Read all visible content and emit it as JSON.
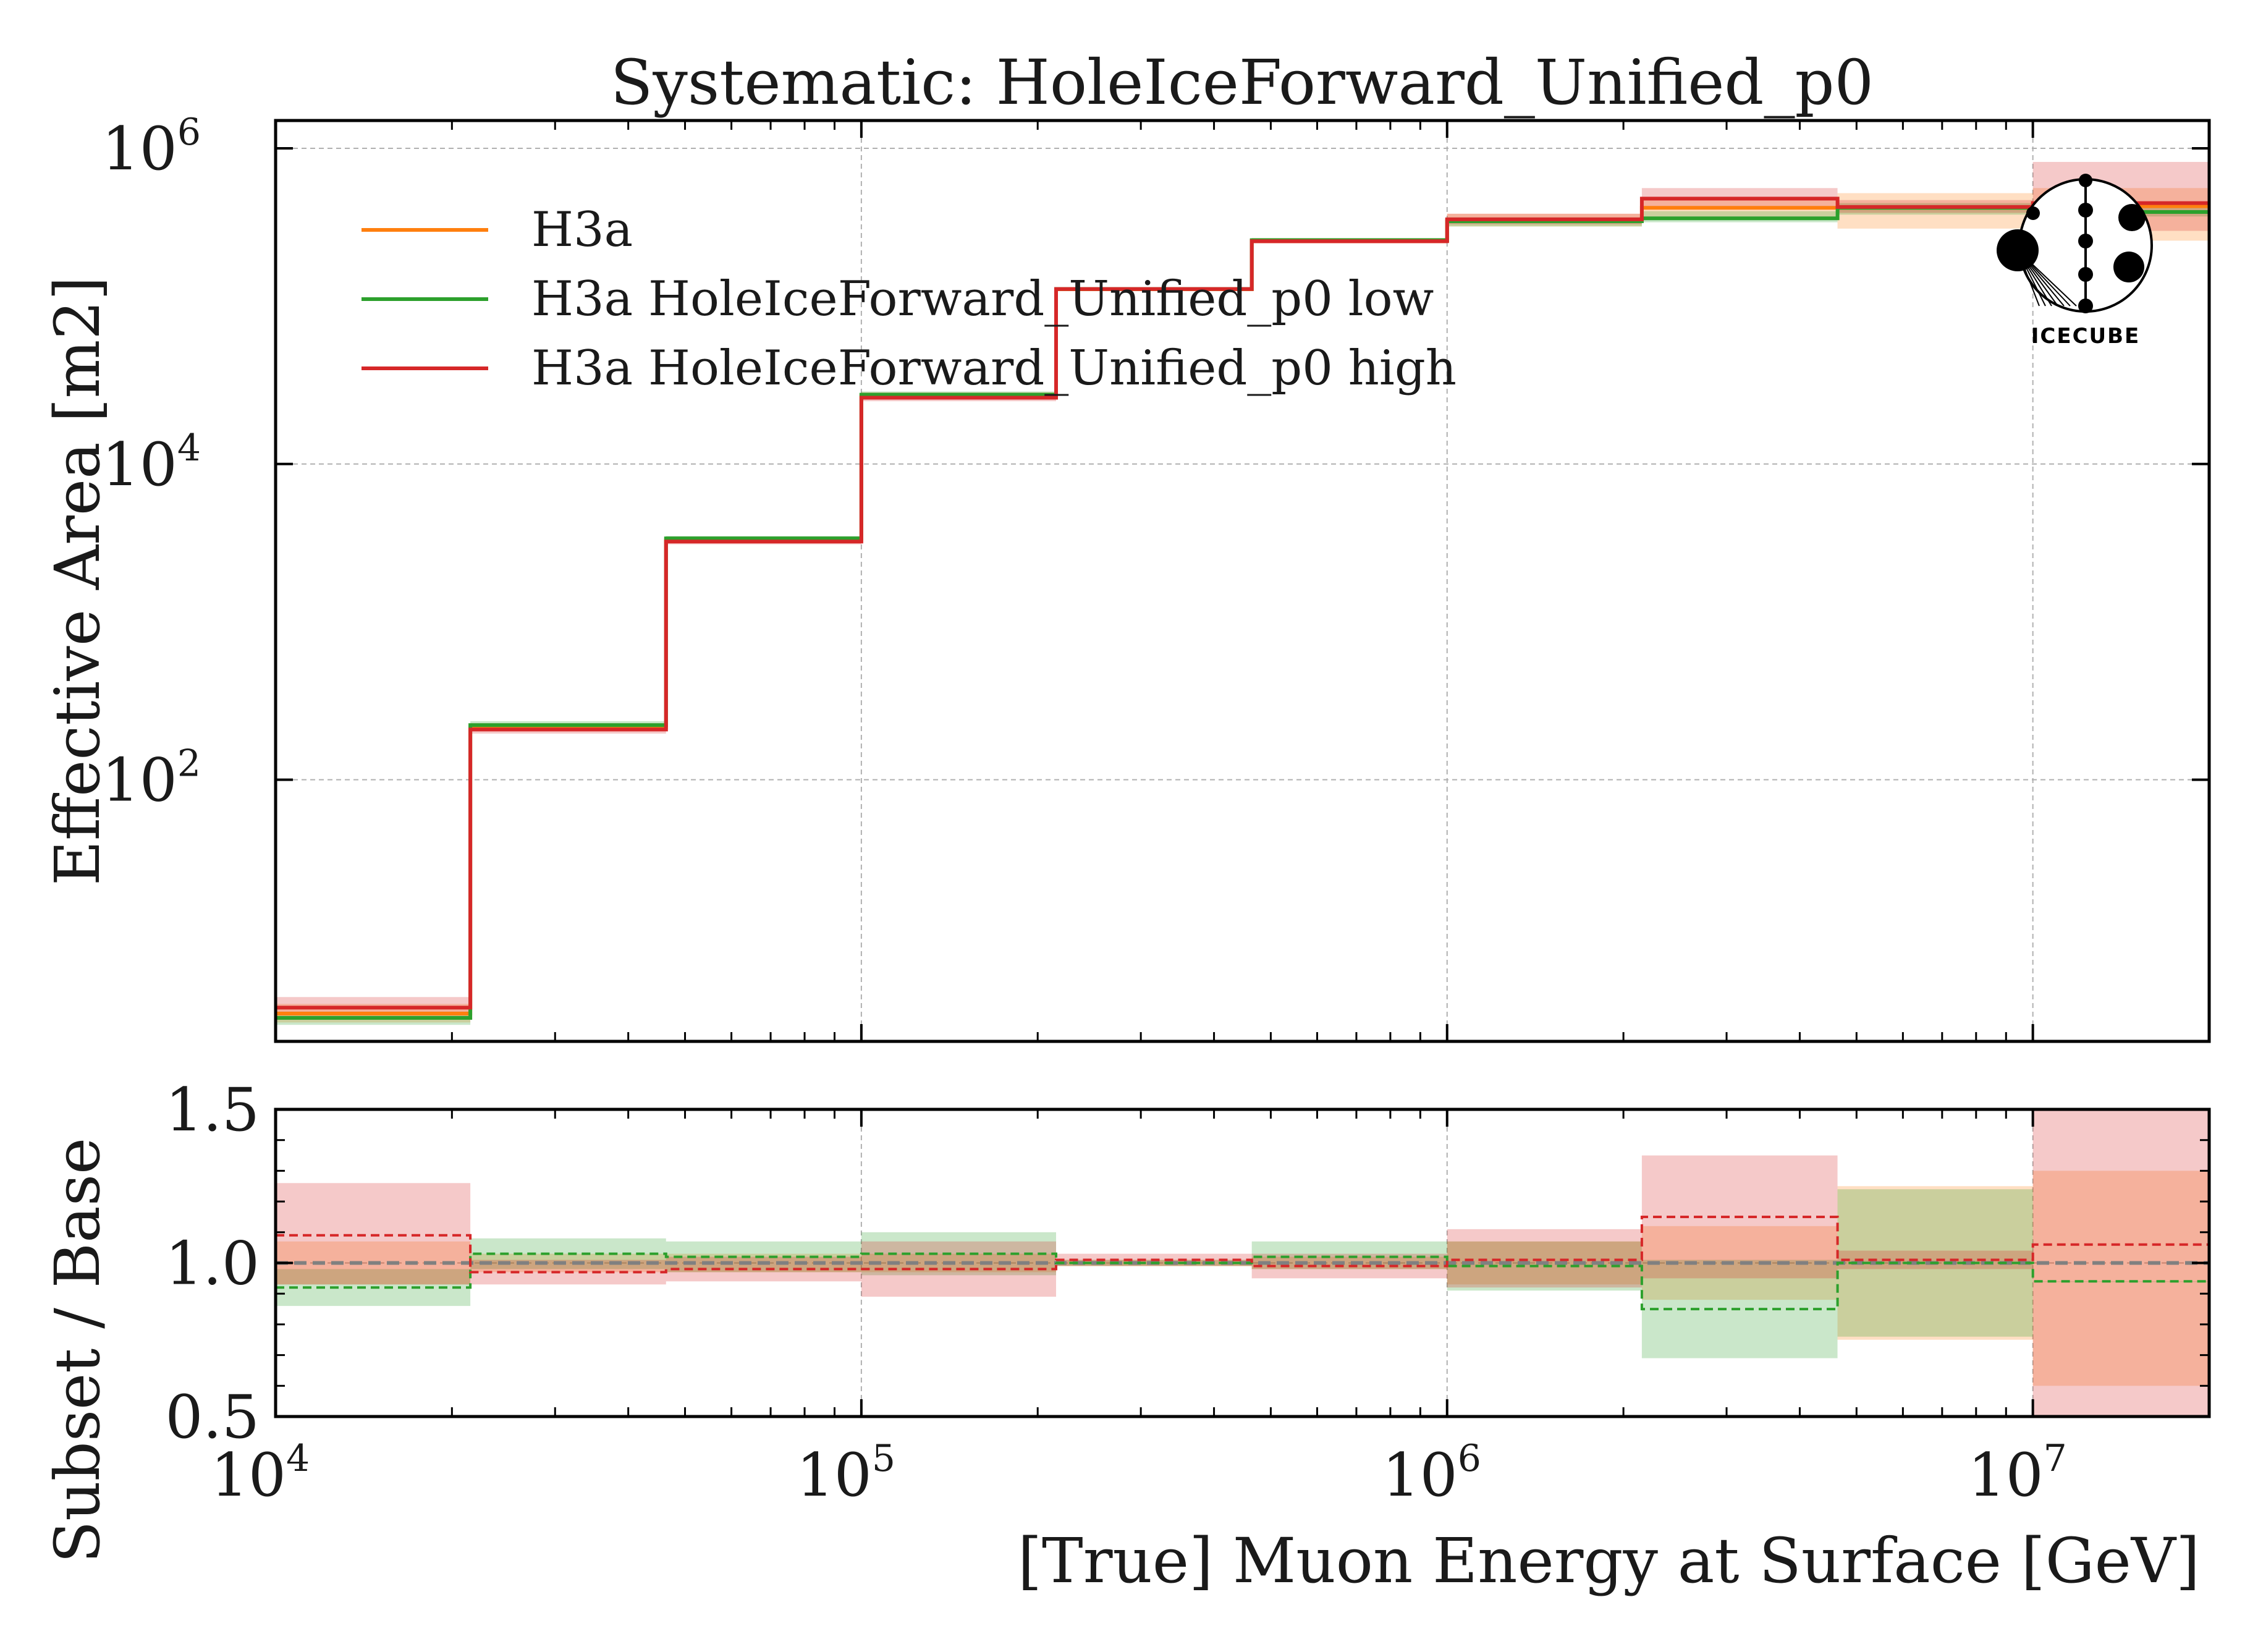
{
  "chart_data": [
    {
      "type": "line",
      "panel": "upper",
      "title": "Systematic: HoleIceForward_Unified_p0",
      "xlabel": "",
      "ylabel": "Effective Area [m2]",
      "xscale": "log",
      "yscale": "log",
      "xlim": [
        10000,
        20000000
      ],
      "ylim": [
        2.2,
        1500000
      ],
      "x_ticks": [
        {
          "value": 10000,
          "base": "10",
          "exp": "4"
        },
        {
          "value": 100000,
          "base": "10",
          "exp": "5"
        },
        {
          "value": 1000000,
          "base": "10",
          "exp": "6"
        },
        {
          "value": 10000000,
          "base": "10",
          "exp": "7"
        }
      ],
      "y_ticks": [
        {
          "value": 100,
          "base": "10",
          "exp": "2"
        },
        {
          "value": 10000,
          "base": "10",
          "exp": "4"
        },
        {
          "value": 1000000,
          "base": "10",
          "exp": "6"
        }
      ],
      "grid": true,
      "legend_position": "upper-left",
      "bin_edges": [
        10000,
        21500,
        46400,
        100000,
        215000,
        464000,
        1000000,
        2150000,
        4640000,
        10000000,
        20000000
      ],
      "series": [
        {
          "name": "H3a",
          "color": "#ff7f0e",
          "style": "step",
          "values": [
            3.3,
            215,
            3300,
            27000,
            128000,
            260000,
            350000,
            420000,
            420000,
            430000
          ],
          "band_low": [
            2.9,
            205,
            3150,
            26000,
            125000,
            250000,
            320000,
            370000,
            310000,
            260000
          ],
          "band_high": [
            3.8,
            228,
            3450,
            28500,
            131000,
            270000,
            385000,
            470000,
            520000,
            560000
          ]
        },
        {
          "name": "H3a HoleIceForward_Unified_p0 low",
          "color": "#2ca02c",
          "style": "step",
          "values": [
            3.1,
            222,
            3380,
            27500,
            128500,
            262000,
            345000,
            360000,
            420000,
            395000
          ],
          "band_low": [
            2.8,
            210,
            3250,
            26500,
            126000,
            255000,
            320000,
            340000,
            380000,
            370000
          ],
          "band_high": [
            3.4,
            235,
            3500,
            28800,
            131000,
            270000,
            365000,
            400000,
            450000,
            420000
          ]
        },
        {
          "name": "H3a HoleIceForward_Unified_p0 high",
          "color": "#d62728",
          "style": "step",
          "values": [
            3.6,
            208,
            3230,
            26300,
            128500,
            258000,
            355000,
            480000,
            425000,
            450000
          ],
          "band_low": [
            3.2,
            196,
            3100,
            25000,
            126000,
            250000,
            330000,
            420000,
            390000,
            300000
          ],
          "band_high": [
            4.2,
            222,
            3400,
            28000,
            131000,
            265000,
            385000,
            560000,
            470000,
            820000
          ]
        }
      ]
    },
    {
      "type": "line",
      "panel": "lower",
      "title": "",
      "xlabel": "[True] Muon Energy at Surface [GeV]",
      "ylabel": "Subset / Base",
      "xscale": "log",
      "xlim": [
        10000,
        20000000
      ],
      "ylim": [
        0.5,
        1.5
      ],
      "y_ticks": [
        "0.5",
        "1.0",
        "1.5"
      ],
      "grid": true,
      "reference_line": 1.0,
      "bin_edges": [
        10000,
        21500,
        46400,
        100000,
        215000,
        464000,
        1000000,
        2150000,
        4640000,
        10000000,
        20000000
      ],
      "series": [
        {
          "name": "H3a",
          "color": "#ff7f0e",
          "style": "band",
          "values": [
            1.0,
            1.0,
            1.0,
            1.0,
            1.0,
            1.0,
            1.0,
            1.0,
            1.0,
            1.0
          ],
          "band_low": [
            0.93,
            0.97,
            0.97,
            0.97,
            0.99,
            0.98,
            0.93,
            0.88,
            0.75,
            0.6
          ],
          "band_high": [
            1.07,
            1.03,
            1.03,
            1.03,
            1.01,
            1.02,
            1.07,
            1.12,
            1.25,
            1.3
          ]
        },
        {
          "name": "H3a HoleIceForward_Unified_p0 low",
          "color": "#2ca02c",
          "style": "dashed-step",
          "values": [
            0.92,
            1.03,
            1.02,
            1.03,
            1.0,
            1.02,
            0.99,
            0.85,
            1.0,
            0.94
          ],
          "band_low": [
            0.86,
            0.98,
            0.97,
            0.96,
            0.99,
            0.98,
            0.91,
            0.69,
            0.76,
            0.94
          ],
          "band_high": [
            0.98,
            1.08,
            1.07,
            1.1,
            1.01,
            1.07,
            1.07,
            1.01,
            1.24,
            0.94
          ]
        },
        {
          "name": "H3a HoleIceForward_Unified_p0 high",
          "color": "#d62728",
          "style": "dashed-step",
          "values": [
            1.09,
            0.97,
            0.98,
            0.98,
            1.01,
            0.99,
            1.01,
            1.15,
            1.01,
            1.06
          ],
          "band_low": [
            0.93,
            0.93,
            0.94,
            0.89,
            0.99,
            0.95,
            0.92,
            0.95,
            0.98,
            0.48
          ],
          "band_high": [
            1.26,
            1.01,
            1.02,
            1.07,
            1.03,
            1.03,
            1.11,
            1.35,
            1.04,
            1.6
          ]
        }
      ]
    }
  ],
  "logo": {
    "text": "ICECUBE"
  }
}
